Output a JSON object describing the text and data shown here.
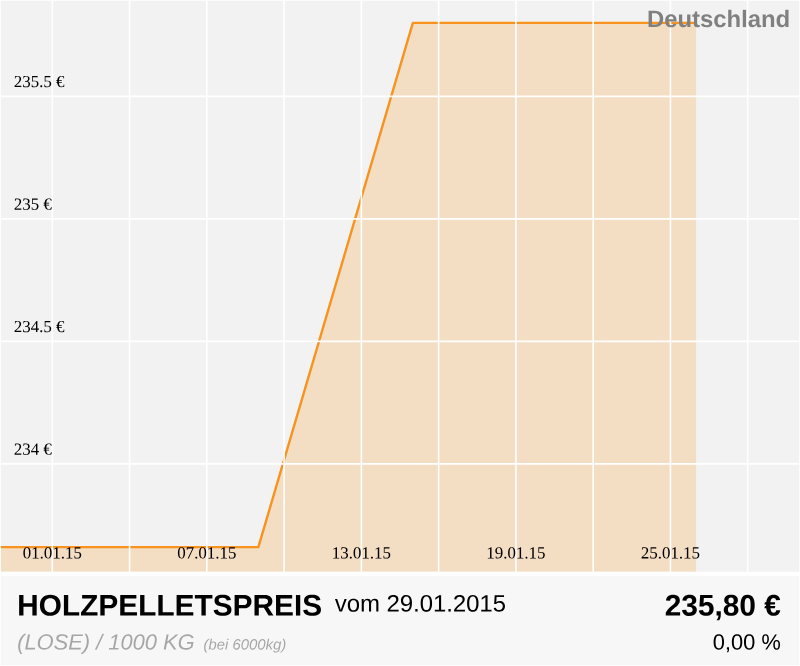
{
  "chart_data": {
    "type": "area",
    "title": "HOLZPELLETSPREIS",
    "subtitle": "vom 29.01.2015",
    "annotations": [
      "Deutschland",
      "(LOSE) / 1000 KG",
      "(bei 6000kg)",
      "235,80 €",
      "0,00 %"
    ],
    "x": [
      "2014-12-30",
      "2015-01-09",
      "2015-01-15",
      "2015-01-26"
    ],
    "series": [
      {
        "color": "#f7931e",
        "values": [
          233.66,
          233.66,
          235.8,
          235.8
        ]
      }
    ],
    "xlim": [
      "2014-12-30",
      "2015-01-30"
    ],
    "xticks": [
      {
        "value": "2015-01-01",
        "label": "01.01.15"
      },
      {
        "value": "2015-01-04",
        "label": null
      },
      {
        "value": "2015-01-07",
        "label": "07.01.15"
      },
      {
        "value": "2015-01-10",
        "label": null
      },
      {
        "value": "2015-01-13",
        "label": "13.01.15"
      },
      {
        "value": "2015-01-16",
        "label": null
      },
      {
        "value": "2015-01-19",
        "label": "19.01.15"
      },
      {
        "value": "2015-01-22",
        "label": null
      },
      {
        "value": "2015-01-25",
        "label": "25.01.15"
      },
      {
        "value": "2015-01-28",
        "label": null
      }
    ],
    "ylim": [
      233.56,
      235.89
    ],
    "yticks": [
      {
        "value": 234,
        "label": "234 €"
      },
      {
        "value": 234.5,
        "label": "234.5 €"
      },
      {
        "value": 235,
        "label": "235 €"
      },
      {
        "value": 235.5,
        "label": "235.5 €"
      }
    ],
    "grid": true
  }
}
